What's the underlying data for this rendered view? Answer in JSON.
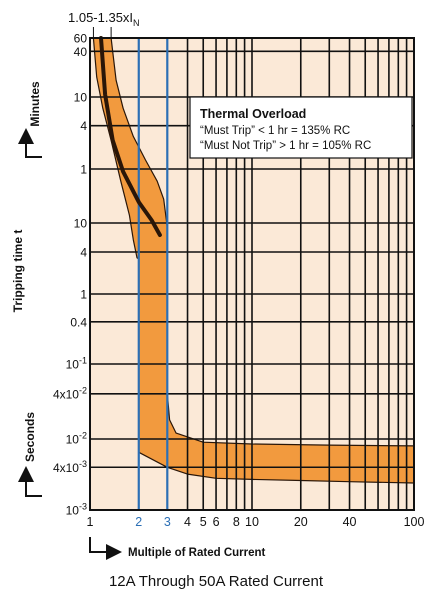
{
  "chart_data": {
    "type": "area",
    "title": "",
    "subtitle": "12A Through 50A Rated Current",
    "xlabel": "Multiple of Rated Current",
    "ylabel": "Tripping time t",
    "y_unit_upper": "Minutes",
    "y_unit_lower": "Seconds",
    "x_scale": "log",
    "y_scale": "log",
    "xlim": [
      1,
      100
    ],
    "x_ticks": [
      {
        "value": 1,
        "label": "1",
        "highlight": false
      },
      {
        "value": 2,
        "label": "2",
        "highlight": true
      },
      {
        "value": 3,
        "label": "3",
        "highlight": true
      },
      {
        "value": 4,
        "label": "4",
        "highlight": false
      },
      {
        "value": 5,
        "label": "5",
        "highlight": false
      },
      {
        "value": 6,
        "label": "6",
        "highlight": false
      },
      {
        "value": 8,
        "label": "8",
        "highlight": false
      },
      {
        "value": 10,
        "label": "10",
        "highlight": false
      },
      {
        "value": 20,
        "label": "20",
        "highlight": false
      },
      {
        "value": 40,
        "label": "40",
        "highlight": false
      },
      {
        "value": 100,
        "label": "100",
        "highlight": false
      }
    ],
    "x_gridlines": [
      1,
      2,
      3,
      4,
      5,
      6,
      7,
      8,
      9,
      10,
      20,
      30,
      40,
      50,
      60,
      70,
      80,
      90,
      100
    ],
    "y_ticks": [
      {
        "seconds": 3600,
        "label": "60"
      },
      {
        "seconds": 2400,
        "label": "40"
      },
      {
        "seconds": 600,
        "label": "10"
      },
      {
        "seconds": 240,
        "label": "4"
      },
      {
        "seconds": 60,
        "label": "1"
      },
      {
        "seconds": 10,
        "label": "10"
      },
      {
        "seconds": 4,
        "label": "4"
      },
      {
        "seconds": 1,
        "label": "1"
      },
      {
        "seconds": 0.4,
        "label": "0.4"
      },
      {
        "seconds": 0.1,
        "label": "10-1"
      },
      {
        "seconds": 0.04,
        "label": "4x10-2"
      },
      {
        "seconds": 0.01,
        "label": "10-2"
      },
      {
        "seconds": 0.004,
        "label": "4x10-3"
      },
      {
        "seconds": 0.001,
        "label": "10-3"
      }
    ],
    "top_annotation": "1.05-1.35xI",
    "top_annotation_sub": "N",
    "top_annotation_range": [
      1.05,
      1.35
    ],
    "legend_box": {
      "title": "Thermal Overload",
      "lines": [
        "“Must Trip” < 1 hr = 135% RC",
        "“Must Not Trip” > 1 hr = 105% RC"
      ],
      "placement": "top-right"
    },
    "series": [
      {
        "role": "band-left-edge",
        "points": [
          [
            1.05,
            3600
          ],
          [
            1.1,
            1100
          ],
          [
            1.2,
            420
          ],
          [
            1.35,
            150
          ],
          [
            1.55,
            40
          ],
          [
            1.75,
            13
          ],
          [
            1.85,
            6
          ],
          [
            1.95,
            3.3
          ],
          [
            2,
            3.2
          ]
        ]
      },
      {
        "role": "band-right-edge",
        "points": [
          [
            1.35,
            3600
          ],
          [
            1.45,
            1000
          ],
          [
            1.6,
            420
          ],
          [
            1.85,
            170
          ],
          [
            2.2,
            80
          ],
          [
            2.6,
            40
          ],
          [
            2.85,
            22
          ],
          [
            3,
            9
          ],
          [
            3,
            0.04
          ],
          [
            3.1,
            0.018
          ],
          [
            3.4,
            0.012
          ],
          [
            5,
            0.009
          ],
          [
            10,
            0.0085
          ],
          [
            30,
            0.0082
          ],
          [
            100,
            0.008
          ]
        ]
      },
      {
        "role": "band-bottom-edge",
        "points": [
          [
            2,
            3.2
          ],
          [
            2,
            0.0065
          ],
          [
            3,
            0.004
          ],
          [
            4,
            0.0032
          ],
          [
            6,
            0.0028
          ],
          [
            10,
            0.0027
          ],
          [
            20,
            0.0026
          ],
          [
            40,
            0.0025
          ],
          [
            100,
            0.0024
          ]
        ]
      },
      {
        "role": "center-curve",
        "color": "#2a1608",
        "points": [
          [
            1.17,
            3600
          ],
          [
            1.24,
            650
          ],
          [
            1.38,
            150
          ],
          [
            1.6,
            55
          ],
          [
            2,
            20
          ],
          [
            2.4,
            11
          ],
          [
            2.7,
            7
          ]
        ]
      }
    ],
    "band_color": "#f29a3e",
    "background_color": "#fbe9d7",
    "highlight_gridline_color": "#2b6fb5",
    "grid": true
  }
}
